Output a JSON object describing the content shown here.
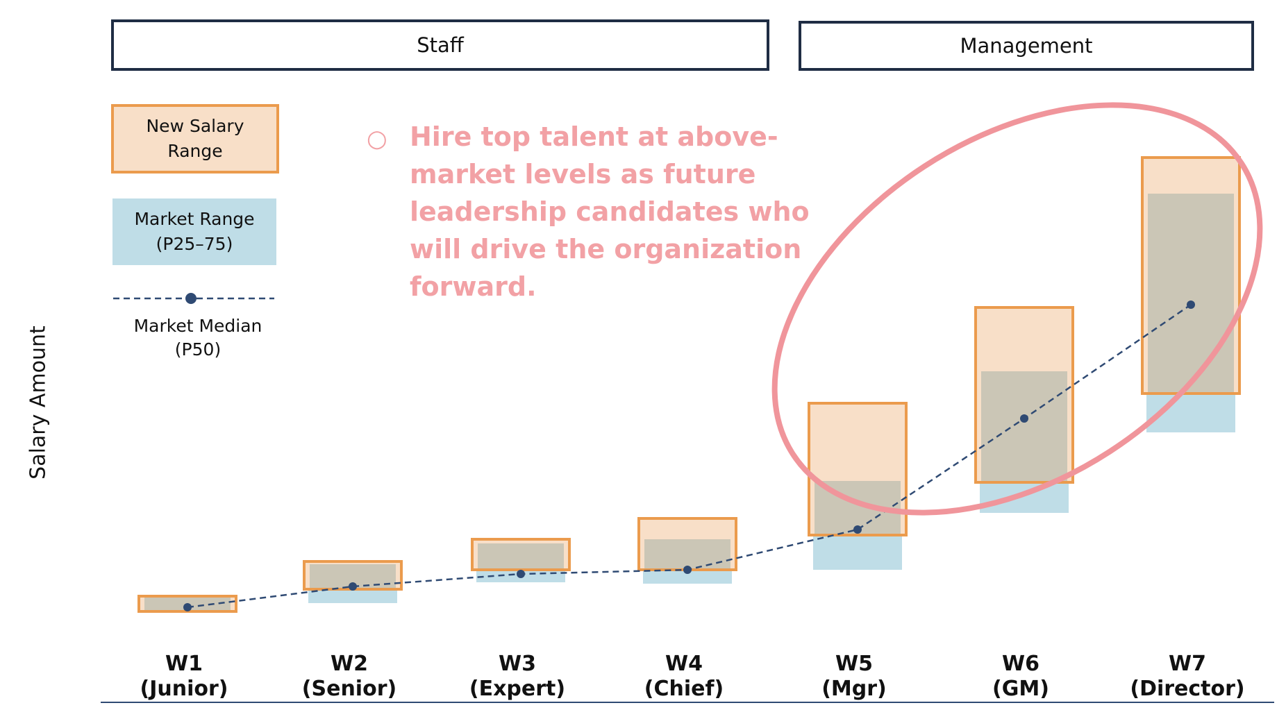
{
  "groups": {
    "staff": "Staff",
    "management": "Management"
  },
  "legend": {
    "new_salary": "New Salary Range",
    "market_range_line1": "Market Range",
    "market_range_line2": "(P25–75)",
    "market_median_line1": "Market Median",
    "market_median_line2": "(P50)"
  },
  "callout": {
    "bullet": "○",
    "text": "Hire top talent at above-market levels as future leadership candidates who will drive the organization forward."
  },
  "colors": {
    "new_salary_fill": "#f8dfc8",
    "new_salary_border": "#eb9b4d",
    "market_fill": "#bfdde7",
    "overlap_fill": "#cbc6b6",
    "median_line": "#2f4a73",
    "ellipse": "#f0959b",
    "axis_line": "#2f4a73"
  },
  "chart_data": {
    "type": "bar",
    "ylabel": "Salary Amount",
    "xlabel": "",
    "categories": [
      [
        "W1",
        "(Junior)"
      ],
      [
        "W2",
        "(Senior)"
      ],
      [
        "W3",
        "(Expert)"
      ],
      [
        "W4",
        "(Chief)"
      ],
      [
        "W5",
        "(Mgr)"
      ],
      [
        "W6",
        "(GM)"
      ],
      [
        "W7",
        "(Director)"
      ]
    ],
    "ylim": [
      0,
      100
    ],
    "grid": false,
    "legend_position": "top-left",
    "series": [
      {
        "name": "New Salary Range",
        "kind": "range",
        "low": [
          3.5,
          11.5,
          18.5,
          18.5,
          31.0,
          50.0,
          82.0
        ],
        "high": [
          9.0,
          21.5,
          29.5,
          37.0,
          78.5,
          113.0,
          167.0
        ]
      },
      {
        "name": "Market Range (P25-75)",
        "kind": "range",
        "low": [
          4.0,
          6.5,
          14.0,
          13.5,
          18.5,
          39.0,
          68.0
        ],
        "high": [
          8.5,
          20.5,
          28.0,
          29.5,
          50.5,
          90.0,
          154.0
        ]
      },
      {
        "name": "Market Median (P50)",
        "kind": "line",
        "values": [
          5.0,
          12.5,
          17.0,
          18.5,
          33.0,
          73.0,
          114.0
        ]
      }
    ]
  }
}
